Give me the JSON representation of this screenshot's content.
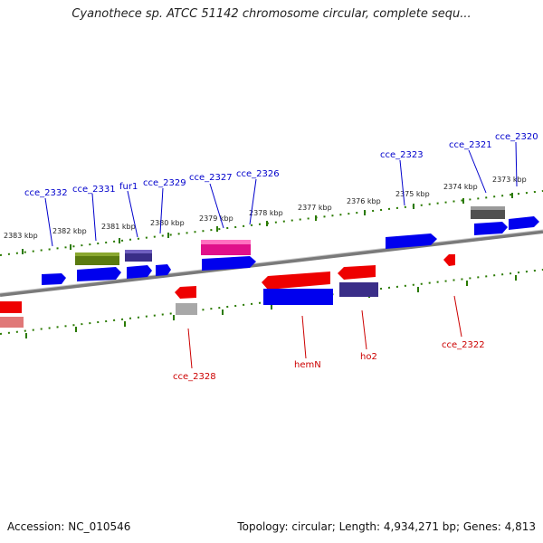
{
  "title": "Cyanothece sp. ATCC 51142 chromosome circular, complete sequ...",
  "footer": {
    "accession": "Accession: NC_010546",
    "topology": "Topology: circular; Length: 4,934,271 bp; Genes: 4,813"
  },
  "kbp_labels": [
    "2383 kbp",
    "2382 kbp",
    "2381 kbp",
    "2380 kbp",
    "2379 kbp",
    "2378 kbp",
    "2377 kbp",
    "2376 kbp",
    "2375 kbp",
    "2374 kbp",
    "2373 kbp"
  ],
  "genes_top": [
    "cce_2332",
    "cce_2331",
    "fur1",
    "cce_2329",
    "cce_2327",
    "cce_2326",
    "cce_2323",
    "cce_2321",
    "cce_2320"
  ],
  "genes_bottom": [
    "cce_2328",
    "hemN",
    "ho2",
    "cce_2322"
  ],
  "colors": {
    "forward_label": "#0000cc",
    "reverse_label": "#cc0000",
    "tick": "#2a7a00",
    "backbone": "#808080"
  }
}
